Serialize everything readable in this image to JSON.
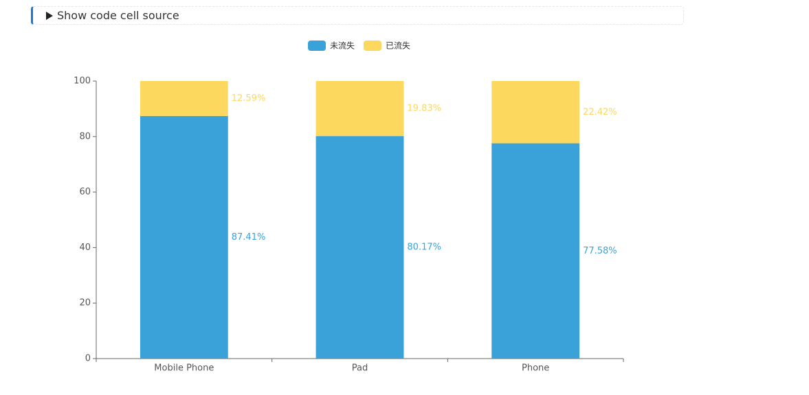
{
  "code_cell": {
    "toggle": "Show code cell source"
  },
  "chart_data": {
    "type": "stacked_bar",
    "categories": [
      "Mobile Phone",
      "Pad",
      "Phone"
    ],
    "series": [
      {
        "name": "未流失",
        "color": "#3aa1d9",
        "values": [
          87.41,
          80.17,
          77.58
        ],
        "value_labels": [
          "87.41%",
          "80.17%",
          "77.58%"
        ]
      },
      {
        "name": "已流失",
        "color": "#fdd85e",
        "values": [
          12.59,
          19.83,
          22.42
        ],
        "value_labels": [
          "12.59%",
          "19.83%",
          "22.42%"
        ]
      }
    ],
    "ylim": [
      0,
      100
    ],
    "yticks": [
      0,
      20,
      40,
      60,
      80,
      100
    ],
    "legend": "top"
  }
}
